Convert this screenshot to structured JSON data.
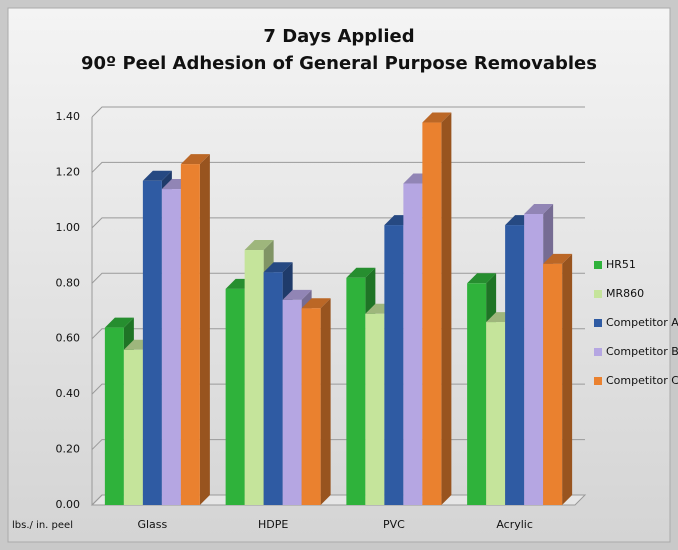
{
  "chart_data": {
    "type": "bar3d",
    "title": "7 Days Applied",
    "subtitle": "90º Peel Adhesion of General Purpose Removables",
    "y_label": "lbs./ in. peel",
    "categories": [
      "Glass",
      "HDPE",
      "PVC",
      "Acrylic"
    ],
    "series": [
      {
        "name": "HR51",
        "color": "#2fb23b",
        "values": [
          0.64,
          0.78,
          0.82,
          0.8
        ]
      },
      {
        "name": "MR860",
        "color": "#c5e49b",
        "values": [
          0.56,
          0.92,
          0.69,
          0.66
        ]
      },
      {
        "name": "Competitor A",
        "color": "#2f5ba3",
        "values": [
          1.17,
          0.84,
          1.01,
          1.01
        ]
      },
      {
        "name": "Competitor B",
        "color": "#b5a6e2",
        "values": [
          1.14,
          0.74,
          1.16,
          1.05
        ]
      },
      {
        "name": "Competitor C",
        "color": "#ea812f",
        "values": [
          1.23,
          0.71,
          1.38,
          0.87
        ]
      }
    ],
    "ylim": [
      0,
      1.4
    ],
    "yticks": [
      {
        "value": 0,
        "label": "0.00"
      },
      {
        "value": 0.2,
        "label": "0.20"
      },
      {
        "value": 0.4,
        "label": "0.40"
      },
      {
        "value": 0.6,
        "label": "0.60"
      },
      {
        "value": 0.8,
        "label": "0.80"
      },
      {
        "value": 1.0,
        "label": "1.00"
      },
      {
        "value": 1.2,
        "label": "1.20"
      },
      {
        "value": 1.4,
        "label": "1.40"
      }
    ],
    "grid": true,
    "legend": "right"
  }
}
